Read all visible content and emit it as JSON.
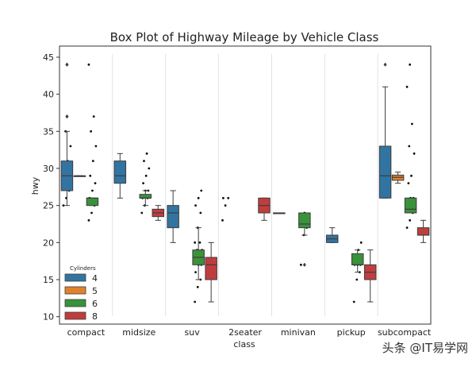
{
  "chart_data": {
    "type": "box",
    "title": "Box Plot of Highway Mileage by Vehicle Class",
    "xlabel": "class",
    "ylabel": "hwy",
    "ylim": [
      9,
      46.5
    ],
    "yticks": [
      10,
      15,
      20,
      25,
      30,
      35,
      40,
      45
    ],
    "categories": [
      "compact",
      "midsize",
      "suv",
      "2seater",
      "minivan",
      "pickup",
      "subcompact"
    ],
    "grid": "vertical separators between categories",
    "legend": {
      "title": "Cylinders",
      "position": "bottom-left"
    },
    "series": [
      {
        "name": "4",
        "color": "#3274a1",
        "boxes": [
          {
            "category": "compact",
            "q1": 27,
            "median": 29,
            "q3": 31,
            "whislo": 25,
            "whishi": 35,
            "fliers": [
              37,
              37,
              44,
              44
            ]
          },
          {
            "category": "midsize",
            "q1": 28,
            "median": 29,
            "q3": 31,
            "whislo": 26,
            "whishi": 32,
            "fliers": []
          },
          {
            "category": "suv",
            "q1": 22,
            "median": 24,
            "q3": 25,
            "whislo": 20,
            "whishi": 27,
            "fliers": []
          },
          {
            "category": "minivan",
            "q1": 24,
            "median": 24,
            "q3": 24,
            "whislo": 24,
            "whishi": 24,
            "fliers": []
          },
          {
            "category": "pickup",
            "q1": 20,
            "median": 20.5,
            "q3": 21,
            "whislo": 20,
            "whishi": 22,
            "fliers": []
          },
          {
            "category": "subcompact",
            "q1": 26,
            "median": 29,
            "q3": 33,
            "whislo": 26,
            "whishi": 41,
            "fliers": [
              44
            ]
          }
        ],
        "points": {
          "compact": [
            25,
            26,
            27,
            28,
            29,
            29,
            30,
            31,
            33,
            35
          ],
          "2seater": [
            23,
            25,
            26,
            26
          ]
        }
      },
      {
        "name": "5",
        "color": "#e1812c",
        "boxes": [
          {
            "category": "compact",
            "q1": 29,
            "median": 29,
            "q3": 29,
            "whislo": 29,
            "whishi": 29,
            "fliers": []
          },
          {
            "category": "subcompact",
            "q1": 28.4,
            "median": 28.8,
            "q3": 29.1,
            "whislo": 28,
            "whishi": 29.5,
            "fliers": []
          }
        ],
        "points": {}
      },
      {
        "name": "6",
        "color": "#3a923a",
        "boxes": [
          {
            "category": "compact",
            "q1": 25,
            "median": 26,
            "q3": 26,
            "whislo": 25,
            "whishi": 26,
            "fliers": []
          },
          {
            "category": "midsize",
            "q1": 26,
            "median": 26,
            "q3": 26.5,
            "whislo": 25,
            "whishi": 27,
            "fliers": []
          },
          {
            "category": "suv",
            "q1": 17,
            "median": 18,
            "q3": 19,
            "whislo": 15,
            "whishi": 22,
            "fliers": []
          },
          {
            "category": "minivan",
            "q1": 22,
            "median": 22.5,
            "q3": 24,
            "whislo": 21,
            "whishi": 24,
            "fliers": [
              17
            ]
          },
          {
            "category": "pickup",
            "q1": 17,
            "median": 17,
            "q3": 18.5,
            "whislo": 16,
            "whishi": 19,
            "fliers": []
          },
          {
            "category": "subcompact",
            "q1": 24,
            "median": 24.5,
            "q3": 26,
            "whislo": 24,
            "whishi": 26,
            "fliers": []
          }
        ],
        "points": {
          "compact": [
            23,
            24,
            25,
            26,
            27,
            28,
            29,
            31,
            33,
            35,
            37,
            44
          ],
          "midsize": [
            24,
            25,
            26,
            26,
            27,
            27,
            28,
            29,
            30,
            31,
            32
          ],
          "suv": [
            12,
            14,
            15,
            16,
            17,
            17,
            18,
            18,
            19,
            19,
            20,
            20,
            22,
            24,
            25,
            26,
            27
          ],
          "minivan": [
            17,
            21,
            22,
            23,
            24
          ],
          "pickup": [
            12,
            15,
            16,
            17,
            17,
            17,
            18,
            19,
            20
          ],
          "subcompact": [
            22,
            23,
            24,
            25,
            26,
            26,
            28,
            29,
            32,
            33,
            36,
            41,
            44
          ]
        }
      },
      {
        "name": "8",
        "color": "#c03d3e",
        "boxes": [
          {
            "category": "midsize",
            "q1": 23.5,
            "median": 24,
            "q3": 24.5,
            "whislo": 23,
            "whishi": 25,
            "fliers": []
          },
          {
            "category": "suv",
            "q1": 15,
            "median": 17,
            "q3": 18,
            "whislo": 12,
            "whishi": 20,
            "fliers": []
          },
          {
            "category": "2seater",
            "q1": 24,
            "median": 25,
            "q3": 26,
            "whislo": 23,
            "whishi": 26,
            "fliers": []
          },
          {
            "category": "pickup",
            "q1": 15,
            "median": 16,
            "q3": 17,
            "whislo": 12,
            "whishi": 19,
            "fliers": []
          },
          {
            "category": "subcompact",
            "q1": 21,
            "median": 21,
            "q3": 22,
            "whislo": 20,
            "whishi": 23,
            "fliers": []
          }
        ],
        "points": {}
      }
    ]
  },
  "watermark": "头条 @IT易学网"
}
